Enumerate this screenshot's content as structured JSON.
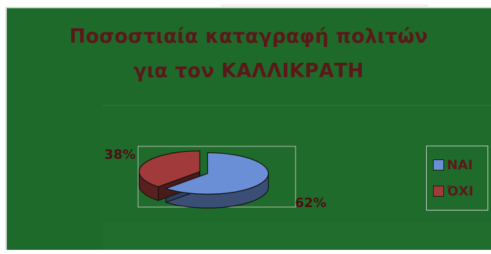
{
  "chart_data": {
    "type": "pie",
    "title_line1": "Ποσοστιαία καταγραφή πολιτών",
    "title_line2": "για τον ΚΑΛΛΙΚΡΑΤΗ",
    "slices": [
      {
        "name": "ΝΑΙ",
        "value": 62,
        "label": "62%",
        "color": "#6b8fd6"
      },
      {
        "name": "ΌΧΙ",
        "value": 38,
        "label": "38%",
        "color": "#a13a3a"
      }
    ],
    "legend_position": "right"
  },
  "colors": {
    "background": "#1e6a2b",
    "title": "#5b1818"
  }
}
